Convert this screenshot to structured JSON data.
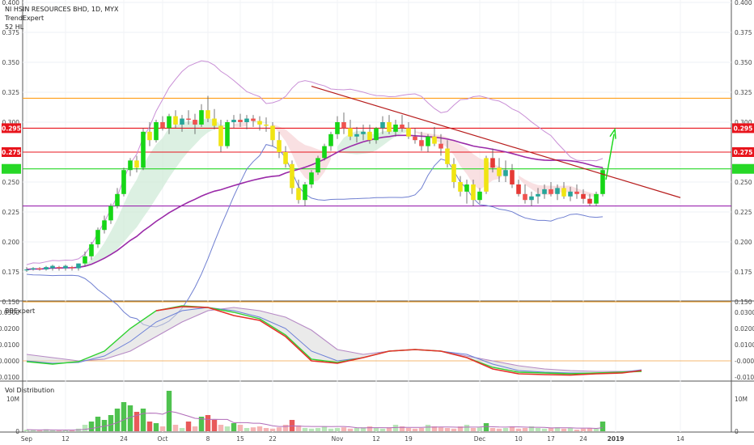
{
  "header": {
    "title": "NI HSIN RESOURCES BHD, 1D, MYX",
    "indicator_1": "TrendExpert",
    "indicator_2": "52 HL"
  },
  "panes": {
    "bb": {
      "title": "BBExpert"
    },
    "vol": {
      "title": "Vol Distribution"
    }
  },
  "price_axis": {
    "min": 0.15,
    "max": 0.4,
    "ticks": [
      "0.400",
      "0.375",
      "0.350",
      "0.325",
      "0.300",
      "0.275",
      "0.250",
      "0.225",
      "0.200",
      "0.175",
      "0.150"
    ],
    "level_tags": [
      {
        "text": "0.295",
        "value": 0.295,
        "color": "#e8141c"
      },
      {
        "text": "0.275",
        "value": 0.275,
        "color": "#e8141c"
      },
      {
        "text": "",
        "value": 0.261,
        "color": "#27d827"
      }
    ]
  },
  "bb_axis": {
    "min": -0.012,
    "max": 0.036,
    "ticks": [
      {
        "text": "0.0300",
        "value": 0.03
      },
      {
        "text": "0.0200",
        "value": 0.02
      },
      {
        "text": "0.0100",
        "value": 0.01
      },
      {
        "text": "-0.0000",
        "value": 0.0
      },
      {
        "text": "-0.0100",
        "value": -0.01
      }
    ]
  },
  "vol_axis": {
    "min": 0,
    "max": 15,
    "ticks": [
      {
        "text": "10M",
        "value": 10
      },
      {
        "text": "0",
        "value": 0
      }
    ]
  },
  "chart_data": {
    "type": "candlestick",
    "title": "NI HSIN RESOURCES BHD, 1D, MYX",
    "x_ticks": [
      "Sep",
      "12",
      "24",
      "Oct",
      "8",
      "15",
      "22",
      "Nov",
      "12",
      "19",
      "Dec",
      "10",
      "17",
      "24",
      "2019",
      "14"
    ],
    "x_tick_bar_index": [
      0,
      6,
      15,
      21,
      28,
      33,
      38,
      48,
      54,
      59,
      70,
      76,
      81,
      86,
      91,
      101
    ],
    "horizontal_levels": [
      {
        "value": 0.32,
        "color": "#ff9f1a"
      },
      {
        "value": 0.295,
        "color": "#e8141c"
      },
      {
        "value": 0.275,
        "color": "#e8141c"
      },
      {
        "value": 0.261,
        "color": "#27d827"
      },
      {
        "value": 0.23,
        "color": "#9c27b0"
      },
      {
        "value": 0.15,
        "color": "#ff9f1a"
      }
    ],
    "trendline": {
      "from": [
        44,
        0.33
      ],
      "to": [
        101,
        0.237
      ],
      "color": "#b71c1c"
    },
    "candles": [
      [
        0.177,
        0.179,
        0.175,
        0.177
      ],
      [
        0.177,
        0.179,
        0.176,
        0.178
      ],
      [
        0.178,
        0.179,
        0.176,
        0.177
      ],
      [
        0.177,
        0.18,
        0.176,
        0.179
      ],
      [
        0.178,
        0.181,
        0.176,
        0.18
      ],
      [
        0.179,
        0.18,
        0.176,
        0.178
      ],
      [
        0.178,
        0.181,
        0.176,
        0.18
      ],
      [
        0.179,
        0.18,
        0.176,
        0.178
      ],
      [
        0.178,
        0.182,
        0.176,
        0.182
      ],
      [
        0.182,
        0.192,
        0.18,
        0.188
      ],
      [
        0.188,
        0.2,
        0.185,
        0.198
      ],
      [
        0.198,
        0.212,
        0.195,
        0.21
      ],
      [
        0.21,
        0.222,
        0.207,
        0.218
      ],
      [
        0.218,
        0.232,
        0.215,
        0.23
      ],
      [
        0.23,
        0.245,
        0.228,
        0.24
      ],
      [
        0.24,
        0.262,
        0.238,
        0.26
      ],
      [
        0.26,
        0.27,
        0.255,
        0.268
      ],
      [
        0.268,
        0.272,
        0.258,
        0.262
      ],
      [
        0.262,
        0.295,
        0.26,
        0.292
      ],
      [
        0.292,
        0.3,
        0.28,
        0.285
      ],
      [
        0.285,
        0.302,
        0.283,
        0.3
      ],
      [
        0.3,
        0.305,
        0.293,
        0.295
      ],
      [
        0.295,
        0.307,
        0.29,
        0.305
      ],
      [
        0.305,
        0.31,
        0.295,
        0.298
      ],
      [
        0.298,
        0.306,
        0.292,
        0.303
      ],
      [
        0.303,
        0.31,
        0.298,
        0.302
      ],
      [
        0.302,
        0.307,
        0.29,
        0.298
      ],
      [
        0.298,
        0.315,
        0.296,
        0.31
      ],
      [
        0.31,
        0.322,
        0.3,
        0.303
      ],
      [
        0.303,
        0.311,
        0.294,
        0.297
      ],
      [
        0.297,
        0.302,
        0.275,
        0.28
      ],
      [
        0.28,
        0.302,
        0.278,
        0.3
      ],
      [
        0.3,
        0.306,
        0.295,
        0.302
      ],
      [
        0.302,
        0.307,
        0.296,
        0.3
      ],
      [
        0.3,
        0.306,
        0.294,
        0.303
      ],
      [
        0.303,
        0.306,
        0.296,
        0.301
      ],
      [
        0.301,
        0.305,
        0.293,
        0.298
      ],
      [
        0.298,
        0.304,
        0.292,
        0.297
      ],
      [
        0.297,
        0.3,
        0.28,
        0.285
      ],
      [
        0.285,
        0.292,
        0.27,
        0.275
      ],
      [
        0.275,
        0.28,
        0.262,
        0.265
      ],
      [
        0.265,
        0.268,
        0.24,
        0.245
      ],
      [
        0.245,
        0.252,
        0.232,
        0.235
      ],
      [
        0.235,
        0.25,
        0.23,
        0.248
      ],
      [
        0.248,
        0.26,
        0.245,
        0.258
      ],
      [
        0.258,
        0.272,
        0.256,
        0.27
      ],
      [
        0.27,
        0.282,
        0.268,
        0.28
      ],
      [
        0.28,
        0.292,
        0.276,
        0.29
      ],
      [
        0.29,
        0.305,
        0.286,
        0.3
      ],
      [
        0.3,
        0.308,
        0.29,
        0.295
      ],
      [
        0.295,
        0.302,
        0.285,
        0.288
      ],
      [
        0.288,
        0.296,
        0.283,
        0.29
      ],
      [
        0.29,
        0.298,
        0.285,
        0.292
      ],
      [
        0.292,
        0.298,
        0.282,
        0.285
      ],
      [
        0.285,
        0.296,
        0.282,
        0.295
      ],
      [
        0.295,
        0.305,
        0.29,
        0.3
      ],
      [
        0.3,
        0.306,
        0.29,
        0.292
      ],
      [
        0.292,
        0.302,
        0.288,
        0.298
      ],
      [
        0.298,
        0.306,
        0.292,
        0.295
      ],
      [
        0.295,
        0.3,
        0.286,
        0.288
      ],
      [
        0.288,
        0.295,
        0.282,
        0.285
      ],
      [
        0.285,
        0.292,
        0.276,
        0.28
      ],
      [
        0.28,
        0.29,
        0.275,
        0.288
      ],
      [
        0.288,
        0.296,
        0.28,
        0.282
      ],
      [
        0.282,
        0.29,
        0.272,
        0.278
      ],
      [
        0.278,
        0.285,
        0.262,
        0.265
      ],
      [
        0.265,
        0.27,
        0.245,
        0.25
      ],
      [
        0.25,
        0.255,
        0.238,
        0.242
      ],
      [
        0.242,
        0.252,
        0.232,
        0.248
      ],
      [
        0.248,
        0.252,
        0.23,
        0.235
      ],
      [
        0.235,
        0.245,
        0.232,
        0.242
      ],
      [
        0.242,
        0.272,
        0.24,
        0.27
      ],
      [
        0.27,
        0.278,
        0.258,
        0.262
      ],
      [
        0.262,
        0.27,
        0.25,
        0.255
      ],
      [
        0.255,
        0.268,
        0.25,
        0.26
      ],
      [
        0.26,
        0.265,
        0.245,
        0.248
      ],
      [
        0.248,
        0.252,
        0.238,
        0.24
      ],
      [
        0.24,
        0.248,
        0.232,
        0.235
      ],
      [
        0.235,
        0.242,
        0.23,
        0.238
      ],
      [
        0.238,
        0.245,
        0.232,
        0.24
      ],
      [
        0.24,
        0.248,
        0.236,
        0.244
      ],
      [
        0.244,
        0.25,
        0.238,
        0.24
      ],
      [
        0.24,
        0.248,
        0.235,
        0.245
      ],
      [
        0.245,
        0.25,
        0.236,
        0.238
      ],
      [
        0.238,
        0.246,
        0.234,
        0.242
      ],
      [
        0.242,
        0.248,
        0.236,
        0.24
      ],
      [
        0.24,
        0.244,
        0.232,
        0.236
      ],
      [
        0.236,
        0.24,
        0.23,
        0.232
      ],
      [
        0.232,
        0.242,
        0.23,
        0.24
      ],
      [
        0.24,
        0.262,
        0.238,
        0.26
      ]
    ],
    "bb_lines": {
      "green": [
        [
          0,
          -0.0005
        ],
        [
          4,
          -0.002
        ],
        [
          8,
          -0.0005
        ],
        [
          12,
          0.006
        ],
        [
          16,
          0.02
        ],
        [
          20,
          0.031
        ],
        [
          24,
          0.034
        ],
        [
          28,
          0.033
        ],
        [
          32,
          0.03
        ],
        [
          36,
          0.026
        ],
        [
          40,
          0.016
        ],
        [
          44,
          0.001
        ],
        [
          48,
          -0.001
        ],
        [
          52,
          0.002
        ],
        [
          56,
          0.006
        ],
        [
          60,
          0.007
        ],
        [
          64,
          0.006
        ],
        [
          68,
          0.002
        ],
        [
          72,
          -0.004
        ],
        [
          76,
          -0.007
        ],
        [
          80,
          -0.0075
        ],
        [
          84,
          -0.008
        ],
        [
          88,
          -0.0075
        ],
        [
          92,
          -0.007
        ],
        [
          95,
          -0.0065
        ]
      ],
      "red": [
        [
          20,
          0.031
        ],
        [
          24,
          0.0335
        ],
        [
          28,
          0.033
        ],
        [
          32,
          0.028
        ],
        [
          36,
          0.025
        ],
        [
          40,
          0.015
        ],
        [
          44,
          0.0
        ],
        [
          48,
          -0.0015
        ],
        [
          52,
          0.002
        ],
        [
          56,
          0.006
        ],
        [
          60,
          0.007
        ],
        [
          64,
          0.006
        ],
        [
          68,
          0.002
        ],
        [
          72,
          -0.005
        ],
        [
          76,
          -0.008
        ],
        [
          80,
          -0.0085
        ],
        [
          84,
          -0.0088
        ],
        [
          88,
          -0.008
        ],
        [
          92,
          -0.0075
        ],
        [
          95,
          -0.006
        ]
      ],
      "blue": [
        [
          0,
          0.0
        ],
        [
          4,
          -0.0015
        ],
        [
          8,
          -0.001
        ],
        [
          12,
          0.003
        ],
        [
          16,
          0.012
        ],
        [
          20,
          0.024
        ],
        [
          24,
          0.031
        ],
        [
          28,
          0.033
        ],
        [
          32,
          0.031
        ],
        [
          36,
          0.027
        ],
        [
          40,
          0.02
        ],
        [
          44,
          0.006
        ],
        [
          48,
          0.0
        ],
        [
          52,
          0.002
        ],
        [
          56,
          0.006
        ],
        [
          60,
          0.007
        ],
        [
          64,
          0.006
        ],
        [
          68,
          0.004
        ],
        [
          72,
          -0.002
        ],
        [
          76,
          -0.006
        ],
        [
          80,
          -0.007
        ],
        [
          84,
          -0.0075
        ],
        [
          88,
          -0.0075
        ],
        [
          92,
          -0.007
        ],
        [
          95,
          -0.0055
        ]
      ],
      "purple": [
        [
          0,
          0.004
        ],
        [
          4,
          0.002
        ],
        [
          8,
          0.0
        ],
        [
          12,
          0.001
        ],
        [
          16,
          0.006
        ],
        [
          20,
          0.015
        ],
        [
          24,
          0.024
        ],
        [
          28,
          0.031
        ],
        [
          32,
          0.033
        ],
        [
          36,
          0.031
        ],
        [
          40,
          0.027
        ],
        [
          44,
          0.019
        ],
        [
          48,
          0.007
        ],
        [
          52,
          0.004
        ],
        [
          56,
          0.006
        ],
        [
          60,
          0.007
        ],
        [
          64,
          0.006
        ],
        [
          68,
          0.003
        ],
        [
          72,
          0.0
        ],
        [
          76,
          -0.003
        ],
        [
          80,
          -0.005
        ],
        [
          84,
          -0.006
        ],
        [
          88,
          -0.0065
        ],
        [
          92,
          -0.0065
        ],
        [
          95,
          -0.006
        ]
      ],
      "zero_line": 0.0
    },
    "volume": [
      0.5,
      0.4,
      0.3,
      0.6,
      0.3,
      0.2,
      0.4,
      0.3,
      0.8,
      2.0,
      3.0,
      4.5,
      3.5,
      5.0,
      7.0,
      9.0,
      8.0,
      6.0,
      7.0,
      3.0,
      2.5,
      1.5,
      12.5,
      2.0,
      1.0,
      3.0,
      1.5,
      4.5,
      5.0,
      3.5,
      2.0,
      1.5,
      2.5,
      2.0,
      1.0,
      1.2,
      1.5,
      1.0,
      0.8,
      1.2,
      2.0,
      3.5,
      1.8,
      1.0,
      0.8,
      1.0,
      1.5,
      0.8,
      1.0,
      1.2,
      0.8,
      1.0,
      1.2,
      1.5,
      1.0,
      0.8,
      1.2,
      2.0,
      1.5,
      1.0,
      0.8,
      1.0,
      2.0,
      1.5,
      1.2,
      1.0,
      0.8,
      1.5,
      2.0,
      1.0,
      1.2,
      2.5,
      1.0,
      0.8,
      1.0,
      1.5,
      0.8,
      1.0,
      1.5,
      1.0,
      0.8,
      1.0,
      1.2,
      0.8,
      1.0,
      0.5,
      0.8,
      1.0,
      0.8,
      3.0
    ]
  }
}
